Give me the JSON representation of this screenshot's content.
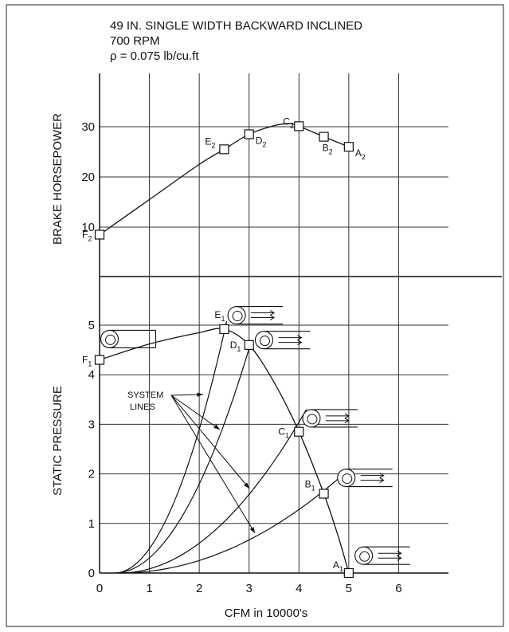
{
  "chart_data": {
    "type": "line",
    "title_lines": [
      "49 IN. SINGLE WIDTH BACKWARD INCLINED",
      "700 RPM",
      "ρ = 0.075 lb/cu.ft"
    ],
    "xlabel": "CFM in 10000's",
    "xlim": [
      0,
      7
    ],
    "x_ticks": [
      0,
      1,
      2,
      3,
      4,
      5,
      6
    ],
    "grid": true,
    "top_panel": {
      "ylabel": "BRAKE HORSEPOWER",
      "ylim": [
        5,
        35
      ],
      "y_ticks": [
        10,
        20,
        30
      ],
      "curve": [
        [
          0,
          8.5
        ],
        [
          1,
          15.5
        ],
        [
          2,
          22.5
        ],
        [
          2.5,
          25.5
        ],
        [
          3,
          28.5
        ],
        [
          3.5,
          30.2
        ],
        [
          3.8,
          30.6
        ],
        [
          4,
          30.1
        ],
        [
          4.5,
          28
        ],
        [
          5,
          26
        ]
      ],
      "points": [
        {
          "name": "F",
          "sub": "2",
          "x": 0,
          "y": 8.5
        },
        {
          "name": "E",
          "sub": "2",
          "x": 2.5,
          "y": 25.5
        },
        {
          "name": "D",
          "sub": "2",
          "x": 3,
          "y": 28.5
        },
        {
          "name": "C",
          "sub": "2",
          "x": 4,
          "y": 30.1
        },
        {
          "name": "B",
          "sub": "2",
          "x": 4.5,
          "y": 28
        },
        {
          "name": "A",
          "sub": "2",
          "x": 5,
          "y": 26
        }
      ]
    },
    "bottom_panel": {
      "ylabel": "STATIC PRESSURE",
      "ylim": [
        0,
        5.6
      ],
      "y_ticks": [
        0,
        1,
        2,
        3,
        4,
        5
      ],
      "fan_curve": [
        [
          0,
          4.3
        ],
        [
          1,
          4.62
        ],
        [
          2,
          4.85
        ],
        [
          2.5,
          4.92
        ],
        [
          3,
          4.6
        ],
        [
          3.5,
          3.85
        ],
        [
          4,
          2.85
        ],
        [
          4.5,
          1.6
        ],
        [
          4.8,
          0.7
        ],
        [
          5,
          0
        ]
      ],
      "points": [
        {
          "name": "F",
          "sub": "1",
          "x": 0,
          "y": 4.3
        },
        {
          "name": "E",
          "sub": "1",
          "x": 2.5,
          "y": 4.92
        },
        {
          "name": "D",
          "sub": "1",
          "x": 3,
          "y": 4.6
        },
        {
          "name": "C",
          "sub": "1",
          "x": 4,
          "y": 2.85
        },
        {
          "name": "B",
          "sub": "1",
          "x": 4.5,
          "y": 1.6
        },
        {
          "name": "A",
          "sub": "1",
          "x": 5,
          "y": 0
        }
      ],
      "system_lines": [
        {
          "start": 0.3,
          "x_end": 2.55,
          "y_end": 5.08
        },
        {
          "start": 0.3,
          "x_end": 3.05,
          "y_end": 4.7
        },
        {
          "start": 0.4,
          "x_end": 4.15,
          "y_end": 3.3
        },
        {
          "start": 0.4,
          "x_end": 4.9,
          "y_end": 2.0
        }
      ],
      "annotation": {
        "lines": [
          "SYSTEM",
          "LINES"
        ]
      }
    },
    "fan_icons": [
      {
        "x": 2.75,
        "y": 5.2,
        "kind": "open"
      },
      {
        "x": 3.3,
        "y": 4.7,
        "kind": "open"
      },
      {
        "x": 4.25,
        "y": 3.12,
        "kind": "open"
      },
      {
        "x": 4.95,
        "y": 1.92,
        "kind": "open"
      },
      {
        "x": 5.3,
        "y": 0.35,
        "kind": "open"
      },
      {
        "x": 0.2,
        "y": 4.72,
        "kind": "closed"
      }
    ]
  }
}
